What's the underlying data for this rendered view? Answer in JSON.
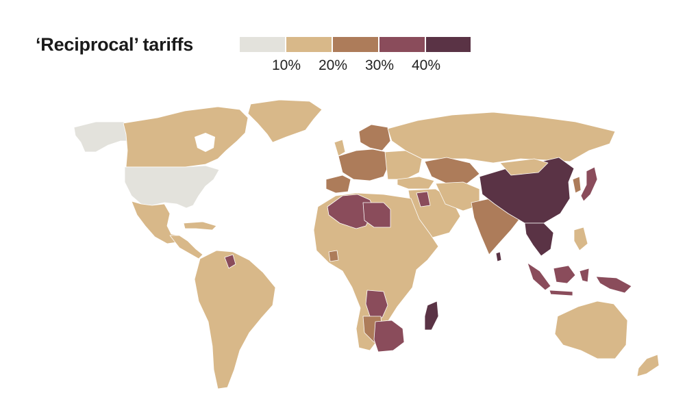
{
  "title": "‘Reciprocal’ tariffs",
  "legend": {
    "bins": [
      {
        "color": "#e3e2dc"
      },
      {
        "color": "#d8b889"
      },
      {
        "color": "#ad7c5a"
      },
      {
        "color": "#8a4c5b"
      },
      {
        "color": "#5a3345"
      }
    ],
    "labels": [
      "10%",
      "20%",
      "30%",
      "40%"
    ]
  },
  "map": {
    "type": "choropleth",
    "colors": {
      "tier10": "#e3e2dc",
      "tier20": "#d8b889",
      "tier30": "#ad7c5a",
      "tier40": "#8a4c5b",
      "tier50": "#5a3345",
      "background": "#ffffff",
      "border": "#ffffff"
    }
  }
}
